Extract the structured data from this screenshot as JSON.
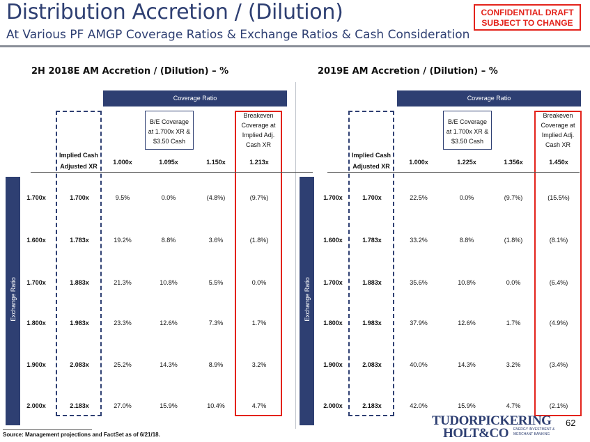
{
  "header": {
    "title": "Distribution Accretion / (Dilution)",
    "subtitle": "At Various PF AMGP Coverage Ratios & Exchange Ratios & Cash Consideration",
    "confidential_line1": "CONFIDENTIAL DRAFT",
    "confidential_line2": "SUBJECT TO CHANGE"
  },
  "left": {
    "section_title": "2H 2018E AM Accretion / (Dilution) – %",
    "coverage_header": "Coverage Ratio",
    "side_label": "Exchange Ratio",
    "implied_label_1": "Implied Cash",
    "implied_label_2": "Adjusted XR",
    "be_note": [
      "B/E Coverage",
      "at 1.700x XR &",
      "$3.50 Cash"
    ],
    "breakeven_note": [
      "Breakeven",
      "Coverage at",
      "Implied Adj.",
      "Cash XR"
    ],
    "columns": [
      "1.000x",
      "1.095x",
      "1.150x",
      "1.213x"
    ],
    "rows": [
      {
        "xr": "1.700x",
        "implied": "1.700x",
        "values": [
          "9.5%",
          "0.0%",
          "(4.8%)",
          "(9.7%)"
        ]
      },
      {
        "xr": "1.600x",
        "implied": "1.783x",
        "values": [
          "19.2%",
          "8.8%",
          "3.6%",
          "(1.8%)"
        ]
      },
      {
        "xr": "1.700x",
        "implied": "1.883x",
        "values": [
          "21.3%",
          "10.8%",
          "5.5%",
          "0.0%"
        ]
      },
      {
        "xr": "1.800x",
        "implied": "1.983x",
        "values": [
          "23.3%",
          "12.6%",
          "7.3%",
          "1.7%"
        ]
      },
      {
        "xr": "1.900x",
        "implied": "2.083x",
        "values": [
          "25.2%",
          "14.3%",
          "8.9%",
          "3.2%"
        ]
      },
      {
        "xr": "2.000x",
        "implied": "2.183x",
        "values": [
          "27.0%",
          "15.9%",
          "10.4%",
          "4.7%"
        ]
      }
    ]
  },
  "right": {
    "section_title": "2019E AM Accretion / (Dilution) – %",
    "coverage_header": "Coverage Ratio",
    "side_label": "Exchange Ratio",
    "implied_label_1": "Implied Cash",
    "implied_label_2": "Adjusted XR",
    "be_note": [
      "B/E Coverage",
      "at 1.700x XR &",
      "$3.50 Cash"
    ],
    "breakeven_note": [
      "Breakeven",
      "Coverage at",
      "Implied Adj.",
      "Cash XR"
    ],
    "columns": [
      "1.000x",
      "1.225x",
      "1.356x",
      "1.450x"
    ],
    "rows": [
      {
        "xr": "1.700x",
        "implied": "1.700x",
        "values": [
          "22.5%",
          "0.0%",
          "(9.7%)",
          "(15.5%)"
        ]
      },
      {
        "xr": "1.600x",
        "implied": "1.783x",
        "values": [
          "33.2%",
          "8.8%",
          "(1.8%)",
          "(8.1%)"
        ]
      },
      {
        "xr": "1.700x",
        "implied": "1.883x",
        "values": [
          "35.6%",
          "10.8%",
          "0.0%",
          "(6.4%)"
        ]
      },
      {
        "xr": "1.800x",
        "implied": "1.983x",
        "values": [
          "37.9%",
          "12.6%",
          "1.7%",
          "(4.9%)"
        ]
      },
      {
        "xr": "1.900x",
        "implied": "2.083x",
        "values": [
          "40.0%",
          "14.3%",
          "3.2%",
          "(3.4%)"
        ]
      },
      {
        "xr": "2.000x",
        "implied": "2.183x",
        "values": [
          "42.0%",
          "15.9%",
          "4.7%",
          "(2.1%)"
        ]
      }
    ]
  },
  "footer": {
    "source": "Source: Management projections and FactSet as of 6/21/18.",
    "logo_line1": "TUDORPICKERING",
    "logo_line2": "HOLT&CO",
    "logo_tag1": "ENERGY INVESTMENT &",
    "logo_tag2": "MERCHANT BANKING",
    "page_number": "62"
  },
  "colors": {
    "navy": "#2e3f72",
    "red": "#e3231b"
  }
}
